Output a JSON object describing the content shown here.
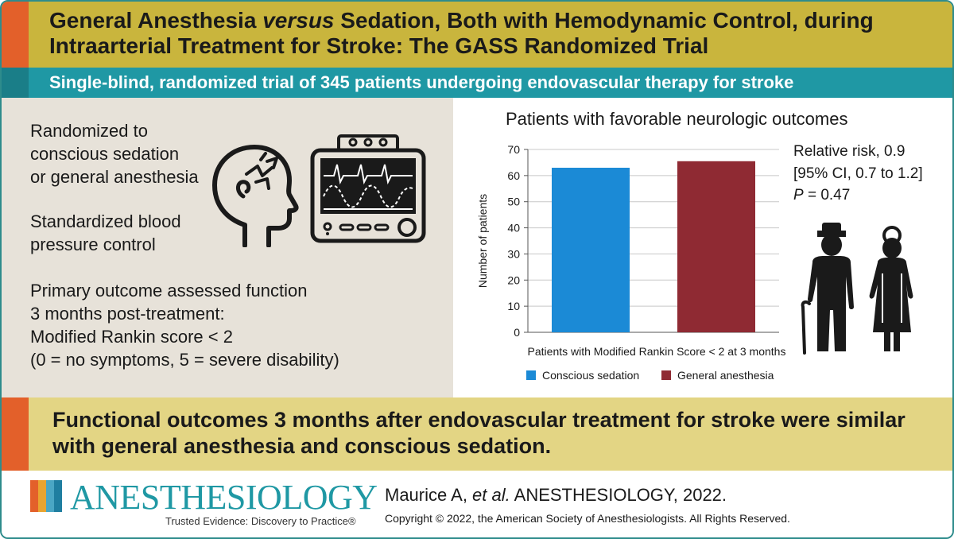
{
  "header": {
    "title_part1": "General Anesthesia",
    "title_versus": "versus",
    "title_part2": "Sedation, Both with Hemodynamic Control, during Intraarterial Treatment for Stroke: The GASS Randomized Trial",
    "subtitle": "Single-blind, randomized trial of 345 patients undergoing endovascular therapy for stroke"
  },
  "left_panel": {
    "line1": "Randomized to",
    "line2": "conscious sedation",
    "line3": "or general anesthesia",
    "line4": "Standardized blood",
    "line5": "pressure control",
    "line6": "Primary outcome assessed function",
    "line7": "3 months post-treatment:",
    "line8": "Modified Rankin score < 2",
    "line9": "(0 = no symptoms, 5 = severe disability)"
  },
  "stats": {
    "rr": "Relative risk, 0.9",
    "ci": "[95% CI, 0.7 to 1.2]",
    "p_label": "P",
    "p_value": " = 0.47"
  },
  "conclusion": "Functional outcomes 3 months after endovascular treatment for stroke were similar with general anesthesia and conscious sedation.",
  "footer": {
    "logo": "ANESTHESIOLOGY",
    "tagline": "Trusted Evidence: Discovery to Practice®",
    "cite_authors": "Maurice A, ",
    "cite_etal": "et al.",
    "cite_journal": " ANESTHESIOLOGY, 2022.",
    "copyright": "Copyright © 2022, the American Society of Anesthesiologists. All Rights Reserved."
  },
  "chart_data": {
    "type": "bar",
    "title": "Patients with favorable neurologic outcomes",
    "xlabel": "Patients with Modified Rankin Score < 2 at 3 months",
    "ylabel": "Number of patients",
    "ylim": [
      0,
      70
    ],
    "yticks": [
      0,
      10,
      20,
      30,
      40,
      50,
      60,
      70
    ],
    "grid": true,
    "legend_position": "bottom",
    "series": [
      {
        "name": "Conscious sedation",
        "values": [
          63
        ],
        "color": "#1b8ad6"
      },
      {
        "name": "General anesthesia",
        "values": [
          65.5
        ],
        "color": "#8f2a33"
      }
    ]
  },
  "colors": {
    "title_bar": "#c9b53d",
    "accent_orange": "#e3602a",
    "teal": "#1f98a4",
    "left_panel_bg": "#e7e2d9",
    "conclusion_bg": "#e3d584"
  }
}
